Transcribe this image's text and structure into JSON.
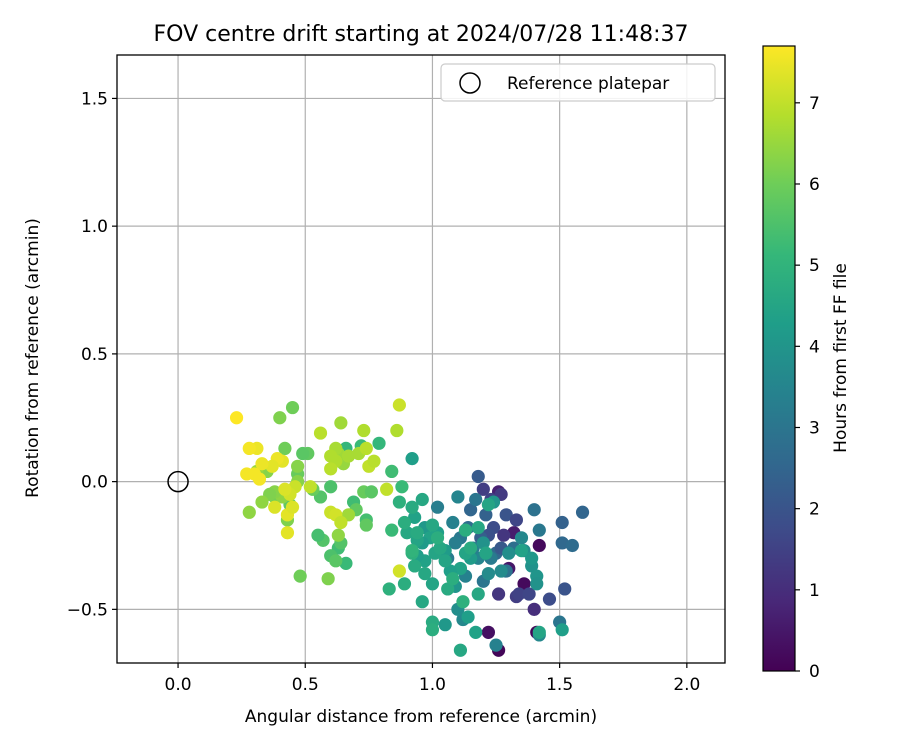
{
  "chart_data": {
    "type": "scatter",
    "title": "FOV centre drift starting at 2024/07/28 11:48:37",
    "xlabel": "Angular distance from reference (arcmin)",
    "ylabel": "Rotation from reference (arcmin)",
    "xlim": [
      -0.24,
      2.15
    ],
    "ylim": [
      -0.71,
      1.67
    ],
    "xticks": [
      "0.0",
      "0.5",
      "1.0",
      "1.5",
      "2.0"
    ],
    "xtick_values": [
      0.0,
      0.5,
      1.0,
      1.5,
      2.0
    ],
    "yticks": [
      "−0.5",
      "0.0",
      "0.5",
      "1.0",
      "1.5"
    ],
    "ytick_values": [
      -0.5,
      0.0,
      0.5,
      1.0,
      1.5
    ],
    "grid": true,
    "legend": {
      "position": "top-right",
      "entries": [
        {
          "label": "Reference platepar",
          "marker": "open-circle"
        }
      ]
    },
    "reference_point": {
      "x": 0.0,
      "y": 0.0
    },
    "colorbar": {
      "label": "Hours from first FF file",
      "colormap": "viridis",
      "range": [
        0,
        7.7
      ],
      "ticks": [
        "0",
        "1",
        "2",
        "3",
        "4",
        "5",
        "6",
        "7"
      ],
      "tick_values": [
        0,
        1,
        2,
        3,
        4,
        5,
        6,
        7
      ]
    },
    "points": [
      {
        "x": 1.26,
        "y": -0.66,
        "h": 0.1
      },
      {
        "x": 1.22,
        "y": -0.59,
        "h": 0.3
      },
      {
        "x": 1.41,
        "y": -0.59,
        "h": 0.1
      },
      {
        "x": 1.36,
        "y": -0.4,
        "h": 0.2
      },
      {
        "x": 1.3,
        "y": -0.34,
        "h": 0.5
      },
      {
        "x": 1.42,
        "y": -0.25,
        "h": 0.2
      },
      {
        "x": 1.32,
        "y": -0.2,
        "h": 0.6
      },
      {
        "x": 1.26,
        "y": -0.04,
        "h": 0.7
      },
      {
        "x": 1.4,
        "y": -0.5,
        "h": 1.0
      },
      {
        "x": 1.33,
        "y": -0.45,
        "h": 1.4
      },
      {
        "x": 1.26,
        "y": -0.44,
        "h": 1.2
      },
      {
        "x": 1.46,
        "y": -0.46,
        "h": 1.8
      },
      {
        "x": 1.34,
        "y": -0.44,
        "h": 1.5
      },
      {
        "x": 1.38,
        "y": -0.44,
        "h": 1.6
      },
      {
        "x": 1.52,
        "y": -0.42,
        "h": 2.0
      },
      {
        "x": 1.2,
        "y": -0.03,
        "h": 1.4
      },
      {
        "x": 1.23,
        "y": -0.07,
        "h": 1.5
      },
      {
        "x": 1.27,
        "y": -0.05,
        "h": 1.3
      },
      {
        "x": 1.29,
        "y": -0.13,
        "h": 2.0
      },
      {
        "x": 1.24,
        "y": -0.18,
        "h": 1.8
      },
      {
        "x": 1.33,
        "y": -0.15,
        "h": 1.6
      },
      {
        "x": 1.28,
        "y": -0.21,
        "h": 1.2
      },
      {
        "x": 1.25,
        "y": -0.28,
        "h": 2.6
      },
      {
        "x": 1.22,
        "y": -0.21,
        "h": 1.9
      },
      {
        "x": 1.18,
        "y": 0.02,
        "h": 2.2
      },
      {
        "x": 1.15,
        "y": -0.11,
        "h": 2.5
      },
      {
        "x": 1.14,
        "y": -0.18,
        "h": 2.7
      },
      {
        "x": 1.19,
        "y": -0.22,
        "h": 2.3
      },
      {
        "x": 1.21,
        "y": -0.13,
        "h": 2.4
      },
      {
        "x": 1.27,
        "y": -0.26,
        "h": 2.1
      },
      {
        "x": 1.29,
        "y": -0.35,
        "h": 2.9
      },
      {
        "x": 1.32,
        "y": -0.26,
        "h": 2.8
      },
      {
        "x": 1.42,
        "y": -0.19,
        "h": 3.1
      },
      {
        "x": 1.4,
        "y": -0.11,
        "h": 2.9
      },
      {
        "x": 1.51,
        "y": -0.16,
        "h": 2.4
      },
      {
        "x": 1.51,
        "y": -0.24,
        "h": 2.6
      },
      {
        "x": 1.55,
        "y": -0.25,
        "h": 2.7
      },
      {
        "x": 1.59,
        "y": -0.12,
        "h": 2.5
      },
      {
        "x": 1.5,
        "y": -0.55,
        "h": 3.0
      },
      {
        "x": 1.42,
        "y": -0.6,
        "h": 3.6
      },
      {
        "x": 1.25,
        "y": -0.64,
        "h": 3.4
      },
      {
        "x": 1.23,
        "y": -0.3,
        "h": 3.2
      },
      {
        "x": 1.2,
        "y": -0.39,
        "h": 3.0
      },
      {
        "x": 1.18,
        "y": -0.3,
        "h": 3.5
      },
      {
        "x": 1.17,
        "y": -0.07,
        "h": 3.0
      },
      {
        "x": 1.16,
        "y": -0.26,
        "h": 3.3
      },
      {
        "x": 1.11,
        "y": -0.22,
        "h": 3.1
      },
      {
        "x": 1.09,
        "y": -0.24,
        "h": 3.3
      },
      {
        "x": 1.06,
        "y": -0.3,
        "h": 3.2
      },
      {
        "x": 1.08,
        "y": -0.16,
        "h": 3.4
      },
      {
        "x": 1.02,
        "y": -0.1,
        "h": 3.3
      },
      {
        "x": 1.1,
        "y": -0.06,
        "h": 3.5
      },
      {
        "x": 1.13,
        "y": -0.37,
        "h": 3.4
      },
      {
        "x": 1.22,
        "y": -0.36,
        "h": 3.7
      },
      {
        "x": 1.35,
        "y": -0.22,
        "h": 3.6
      },
      {
        "x": 1.36,
        "y": -0.27,
        "h": 3.8
      },
      {
        "x": 1.39,
        "y": -0.33,
        "h": 3.9
      },
      {
        "x": 1.41,
        "y": -0.37,
        "h": 4.0
      },
      {
        "x": 1.39,
        "y": -0.3,
        "h": 4.1
      },
      {
        "x": 1.41,
        "y": -0.4,
        "h": 3.9
      },
      {
        "x": 1.3,
        "y": -0.28,
        "h": 3.8
      },
      {
        "x": 1.27,
        "y": -0.35,
        "h": 3.7
      },
      {
        "x": 1.24,
        "y": -0.08,
        "h": 4.0
      },
      {
        "x": 1.2,
        "y": -0.24,
        "h": 3.9
      },
      {
        "x": 1.15,
        "y": -0.3,
        "h": 4.2
      },
      {
        "x": 1.12,
        "y": -0.54,
        "h": 3.6
      },
      {
        "x": 1.1,
        "y": -0.5,
        "h": 3.8
      },
      {
        "x": 1.05,
        "y": -0.56,
        "h": 4.1
      },
      {
        "x": 1.14,
        "y": -0.53,
        "h": 4.3
      },
      {
        "x": 1.09,
        "y": -0.41,
        "h": 4.0
      },
      {
        "x": 1.05,
        "y": -0.27,
        "h": 4.2
      },
      {
        "x": 1.02,
        "y": -0.2,
        "h": 4.3
      },
      {
        "x": 0.97,
        "y": -0.18,
        "h": 4.1
      },
      {
        "x": 0.99,
        "y": -0.22,
        "h": 4.4
      },
      {
        "x": 0.96,
        "y": -0.24,
        "h": 4.2
      },
      {
        "x": 1.01,
        "y": -0.28,
        "h": 4.5
      },
      {
        "x": 0.97,
        "y": -0.31,
        "h": 4.4
      },
      {
        "x": 0.94,
        "y": -0.29,
        "h": 4.3
      },
      {
        "x": 0.9,
        "y": -0.2,
        "h": 4.6
      },
      {
        "x": 0.94,
        "y": -0.23,
        "h": 4.5
      },
      {
        "x": 0.93,
        "y": -0.14,
        "h": 4.4
      },
      {
        "x": 0.96,
        "y": -0.07,
        "h": 4.6
      },
      {
        "x": 0.92,
        "y": 0.09,
        "h": 4.3
      },
      {
        "x": 0.87,
        "y": -0.08,
        "h": 4.9
      },
      {
        "x": 0.92,
        "y": -0.1,
        "h": 4.7
      },
      {
        "x": 0.89,
        "y": -0.16,
        "h": 4.8
      },
      {
        "x": 0.92,
        "y": -0.28,
        "h": 4.9
      },
      {
        "x": 0.93,
        "y": -0.33,
        "h": 4.7
      },
      {
        "x": 0.97,
        "y": -0.36,
        "h": 4.6
      },
      {
        "x": 1.0,
        "y": -0.4,
        "h": 4.5
      },
      {
        "x": 0.96,
        "y": -0.47,
        "h": 4.6
      },
      {
        "x": 1.0,
        "y": -0.55,
        "h": 4.7
      },
      {
        "x": 1.0,
        "y": -0.58,
        "h": 4.8
      },
      {
        "x": 1.11,
        "y": -0.66,
        "h": 4.6
      },
      {
        "x": 1.17,
        "y": -0.59,
        "h": 4.4
      },
      {
        "x": 1.51,
        "y": -0.58,
        "h": 4.3
      },
      {
        "x": 1.42,
        "y": -0.59,
        "h": 4.5
      },
      {
        "x": 1.35,
        "y": -0.27,
        "h": 4.4
      },
      {
        "x": 1.21,
        "y": -0.28,
        "h": 4.5
      },
      {
        "x": 1.18,
        "y": -0.18,
        "h": 4.6
      },
      {
        "x": 1.13,
        "y": -0.28,
        "h": 4.5
      },
      {
        "x": 1.11,
        "y": -0.34,
        "h": 4.4
      },
      {
        "x": 1.07,
        "y": -0.35,
        "h": 4.3
      },
      {
        "x": 1.05,
        "y": -0.31,
        "h": 4.5
      },
      {
        "x": 1.03,
        "y": -0.26,
        "h": 4.6
      },
      {
        "x": 1.06,
        "y": -0.42,
        "h": 4.7
      },
      {
        "x": 1.08,
        "y": -0.38,
        "h": 4.8
      },
      {
        "x": 1.12,
        "y": -0.47,
        "h": 4.9
      },
      {
        "x": 1.15,
        "y": -0.26,
        "h": 4.7
      },
      {
        "x": 1.13,
        "y": -0.19,
        "h": 4.8
      },
      {
        "x": 1.18,
        "y": -0.44,
        "h": 4.6
      },
      {
        "x": 1.22,
        "y": -0.09,
        "h": 4.5
      },
      {
        "x": 1.0,
        "y": -0.17,
        "h": 4.6
      },
      {
        "x": 1.02,
        "y": -0.22,
        "h": 4.8
      },
      {
        "x": 0.83,
        "y": -0.42,
        "h": 4.9
      },
      {
        "x": 0.89,
        "y": -0.4,
        "h": 4.8
      },
      {
        "x": 0.94,
        "y": -0.2,
        "h": 4.7
      },
      {
        "x": 0.79,
        "y": 0.15,
        "h": 5.1
      },
      {
        "x": 0.84,
        "y": 0.04,
        "h": 5.3
      },
      {
        "x": 0.88,
        "y": -0.02,
        "h": 5.2
      },
      {
        "x": 0.92,
        "y": -0.27,
        "h": 5.0
      },
      {
        "x": 0.84,
        "y": -0.19,
        "h": 5.2
      },
      {
        "x": 0.74,
        "y": -0.15,
        "h": 5.4
      },
      {
        "x": 0.66,
        "y": 0.13,
        "h": 5.1
      },
      {
        "x": 0.69,
        "y": -0.08,
        "h": 5.3
      },
      {
        "x": 0.72,
        "y": 0.14,
        "h": 5.2
      },
      {
        "x": 0.66,
        "y": -0.32,
        "h": 5.2
      },
      {
        "x": 0.63,
        "y": -0.26,
        "h": 5.3
      },
      {
        "x": 0.6,
        "y": -0.29,
        "h": 5.5
      },
      {
        "x": 0.57,
        "y": -0.23,
        "h": 5.6
      },
      {
        "x": 0.55,
        "y": -0.21,
        "h": 5.4
      },
      {
        "x": 0.56,
        "y": -0.06,
        "h": 5.6
      },
      {
        "x": 0.6,
        "y": -0.02,
        "h": 5.5
      },
      {
        "x": 0.62,
        "y": -0.31,
        "h": 5.7
      },
      {
        "x": 0.64,
        "y": -0.24,
        "h": 5.6
      },
      {
        "x": 0.74,
        "y": -0.17,
        "h": 5.8
      },
      {
        "x": 0.7,
        "y": -0.11,
        "h": 5.8
      },
      {
        "x": 0.73,
        "y": -0.04,
        "h": 5.9
      },
      {
        "x": 0.76,
        "y": -0.04,
        "h": 5.7
      },
      {
        "x": 0.53,
        "y": -0.03,
        "h": 5.9
      },
      {
        "x": 0.51,
        "y": 0.11,
        "h": 5.8
      },
      {
        "x": 0.49,
        "y": 0.11,
        "h": 5.7
      },
      {
        "x": 0.47,
        "y": 0.03,
        "h": 5.9
      },
      {
        "x": 0.44,
        "y": -0.09,
        "h": 5.8
      },
      {
        "x": 0.42,
        "y": 0.13,
        "h": 6.0
      },
      {
        "x": 0.45,
        "y": 0.29,
        "h": 6.0
      },
      {
        "x": 0.4,
        "y": 0.25,
        "h": 6.2
      },
      {
        "x": 0.48,
        "y": -0.37,
        "h": 6.0
      },
      {
        "x": 0.47,
        "y": 0.06,
        "h": 6.3
      },
      {
        "x": 0.38,
        "y": -0.06,
        "h": 6.1
      },
      {
        "x": 0.43,
        "y": -0.15,
        "h": 6.2
      },
      {
        "x": 0.41,
        "y": -0.06,
        "h": 6.4
      },
      {
        "x": 0.38,
        "y": -0.04,
        "h": 6.3
      },
      {
        "x": 0.36,
        "y": -0.05,
        "h": 6.2
      },
      {
        "x": 0.33,
        "y": -0.08,
        "h": 6.4
      },
      {
        "x": 0.35,
        "y": 0.04,
        "h": 6.3
      },
      {
        "x": 0.31,
        "y": 0.04,
        "h": 6.5
      },
      {
        "x": 0.28,
        "y": -0.12,
        "h": 6.4
      },
      {
        "x": 0.47,
        "y": 0.0,
        "h": 6.3
      },
      {
        "x": 0.59,
        "y": -0.38,
        "h": 6.2
      },
      {
        "x": 0.63,
        "y": -0.21,
        "h": 6.4
      },
      {
        "x": 0.67,
        "y": -0.13,
        "h": 6.6
      },
      {
        "x": 0.63,
        "y": 0.11,
        "h": 6.6
      },
      {
        "x": 0.65,
        "y": 0.07,
        "h": 6.5
      },
      {
        "x": 0.67,
        "y": 0.1,
        "h": 6.7
      },
      {
        "x": 0.62,
        "y": 0.08,
        "h": 6.8
      },
      {
        "x": 0.64,
        "y": 0.23,
        "h": 6.6
      },
      {
        "x": 0.62,
        "y": 0.13,
        "h": 6.7
      },
      {
        "x": 0.6,
        "y": 0.1,
        "h": 6.8
      },
      {
        "x": 0.6,
        "y": 0.05,
        "h": 6.9
      },
      {
        "x": 0.56,
        "y": 0.19,
        "h": 6.9
      },
      {
        "x": 0.71,
        "y": 0.11,
        "h": 6.7
      },
      {
        "x": 0.73,
        "y": 0.2,
        "h": 6.8
      },
      {
        "x": 0.74,
        "y": 0.13,
        "h": 6.9
      },
      {
        "x": 0.75,
        "y": 0.06,
        "h": 7.0
      },
      {
        "x": 0.77,
        "y": 0.08,
        "h": 6.9
      },
      {
        "x": 0.86,
        "y": 0.2,
        "h": 6.8
      },
      {
        "x": 0.87,
        "y": 0.3,
        "h": 7.1
      },
      {
        "x": 0.82,
        "y": -0.03,
        "h": 7.0
      },
      {
        "x": 0.87,
        "y": -0.35,
        "h": 7.2
      },
      {
        "x": 0.6,
        "y": -0.12,
        "h": 7.1
      },
      {
        "x": 0.62,
        "y": -0.13,
        "h": 7.2
      },
      {
        "x": 0.64,
        "y": -0.16,
        "h": 7.0
      },
      {
        "x": 0.52,
        "y": -0.02,
        "h": 7.0
      },
      {
        "x": 0.46,
        "y": -0.02,
        "h": 7.1
      },
      {
        "x": 0.44,
        "y": -0.05,
        "h": 7.2
      },
      {
        "x": 0.42,
        "y": -0.03,
        "h": 7.3
      },
      {
        "x": 0.43,
        "y": -0.13,
        "h": 7.4
      },
      {
        "x": 0.45,
        "y": -0.1,
        "h": 7.3
      },
      {
        "x": 0.43,
        "y": -0.2,
        "h": 7.4
      },
      {
        "x": 0.38,
        "y": -0.1,
        "h": 7.3
      },
      {
        "x": 0.41,
        "y": 0.08,
        "h": 7.4
      },
      {
        "x": 0.39,
        "y": 0.09,
        "h": 7.5
      },
      {
        "x": 0.37,
        "y": 0.06,
        "h": 7.4
      },
      {
        "x": 0.33,
        "y": 0.07,
        "h": 7.5
      },
      {
        "x": 0.3,
        "y": 0.03,
        "h": 7.6
      },
      {
        "x": 0.27,
        "y": 0.03,
        "h": 7.6
      },
      {
        "x": 0.31,
        "y": 0.13,
        "h": 7.5
      },
      {
        "x": 0.28,
        "y": 0.13,
        "h": 7.6
      },
      {
        "x": 0.23,
        "y": 0.25,
        "h": 7.7
      },
      {
        "x": 0.32,
        "y": 0.01,
        "h": 7.6
      }
    ]
  }
}
